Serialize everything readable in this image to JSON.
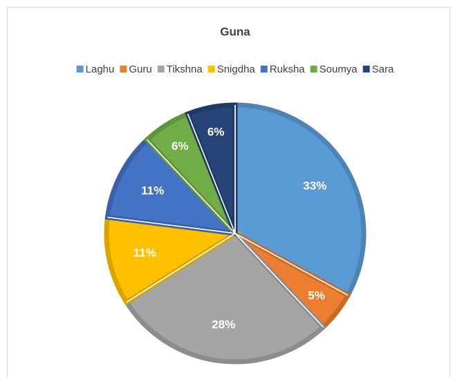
{
  "chart_data": {
    "type": "pie",
    "title": "Guna",
    "categories": [
      "Laghu",
      "Guru",
      "Tikshna",
      "Snigdha",
      "Ruksha",
      "Soumya",
      "Sara"
    ],
    "values": [
      33,
      5,
      28,
      11,
      11,
      6,
      6
    ],
    "value_labels": [
      "33%",
      "5%",
      "28%",
      "11%",
      "11%",
      "6%",
      "6%"
    ],
    "colors": [
      "#5b9bd5",
      "#ed7d31",
      "#a5a5a5",
      "#ffc000",
      "#4472c4",
      "#70ad47",
      "#264478"
    ],
    "legend": "top"
  }
}
